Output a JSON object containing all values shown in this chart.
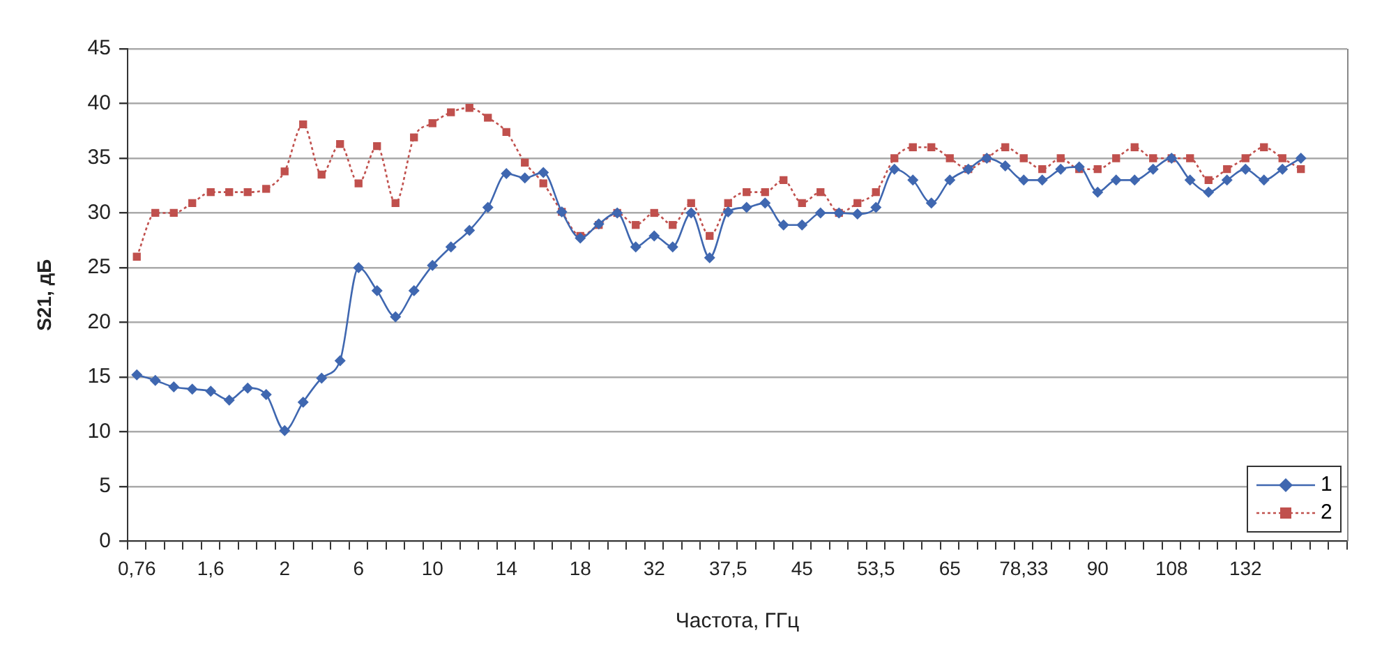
{
  "chart_data": {
    "type": "line",
    "xlabel": "Частота, ГГц",
    "ylabel": "S21, дБ",
    "categories": [
      "0,76",
      null,
      null,
      null,
      "1,6",
      null,
      null,
      null,
      "2",
      null,
      null,
      null,
      "6",
      null,
      null,
      null,
      "10",
      null,
      null,
      null,
      "14",
      null,
      null,
      null,
      "18",
      null,
      null,
      null,
      "32",
      null,
      null,
      null,
      "37,5",
      null,
      null,
      null,
      "45",
      null,
      null,
      null,
      "53,5",
      null,
      null,
      null,
      "65",
      null,
      null,
      null,
      "78,33",
      null,
      null,
      null,
      "90",
      null,
      null,
      null,
      "108",
      null,
      null,
      null,
      "132",
      null,
      null,
      null,
      null,
      null
    ],
    "series": [
      {
        "name": "1",
        "color": "#3f67b0",
        "marker": "diamond",
        "line_style": "solid",
        "values": [
          15.2,
          14.7,
          14.1,
          13.9,
          13.7,
          12.9,
          14.0,
          13.4,
          10.1,
          12.7,
          14.9,
          16.5,
          25.0,
          22.9,
          20.5,
          22.9,
          25.2,
          26.9,
          28.4,
          30.5,
          33.6,
          33.2,
          33.7,
          30.1,
          27.7,
          29.0,
          30.0,
          26.9,
          27.9,
          26.9,
          30.0,
          25.9,
          30.1,
          30.5,
          30.9,
          28.9,
          28.9,
          30.0,
          30.0,
          29.9,
          30.5,
          34.0,
          33.0,
          30.9,
          33.0,
          34.0,
          35.0,
          34.3,
          33.0,
          33.0,
          34.0,
          34.2,
          31.9,
          33.0,
          33.0,
          34.0,
          35.0,
          33.0,
          31.9,
          33.0,
          34.0,
          33.0,
          34.0,
          35.0,
          null,
          null
        ]
      },
      {
        "name": "2",
        "color": "#c0504d",
        "marker": "square",
        "line_style": "dotted",
        "values": [
          26.0,
          30.0,
          30.0,
          30.9,
          31.9,
          31.9,
          31.9,
          32.2,
          33.8,
          38.1,
          33.5,
          36.3,
          32.7,
          36.1,
          30.9,
          36.9,
          38.2,
          39.2,
          39.6,
          38.7,
          37.4,
          34.6,
          32.7,
          30.1,
          27.9,
          28.9,
          30.0,
          28.9,
          30.0,
          28.9,
          30.9,
          27.9,
          30.9,
          31.9,
          31.9,
          33.0,
          30.9,
          31.9,
          30.0,
          30.9,
          31.9,
          35.0,
          36.0,
          36.0,
          35.0,
          34.0,
          35.0,
          36.0,
          35.0,
          34.0,
          35.0,
          34.0,
          34.0,
          35.0,
          36.0,
          35.0,
          35.0,
          35.0,
          33.0,
          34.0,
          35.0,
          36.0,
          35.0,
          34.0,
          null,
          null
        ]
      }
    ],
    "ylim": [
      0,
      45
    ],
    "yticks": [
      0,
      5,
      10,
      15,
      20,
      25,
      30,
      35,
      40,
      45
    ],
    "grid": "y",
    "legend": "bottom right"
  }
}
